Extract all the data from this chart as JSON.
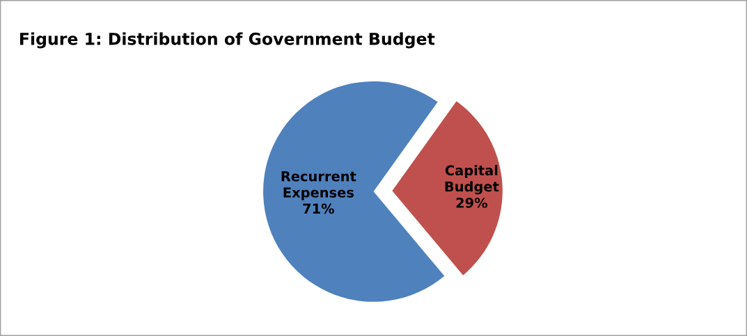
{
  "chart_data": {
    "type": "pie",
    "title": "Figure 1: Distribution of Government Budget",
    "categories": [
      "Recurrent\nExpenses",
      "Capital\nBudget"
    ],
    "values": [
      71,
      29
    ],
    "value_labels": [
      "71%",
      "29%"
    ],
    "colors": [
      "#4f81bd",
      "#c0504d"
    ]
  }
}
